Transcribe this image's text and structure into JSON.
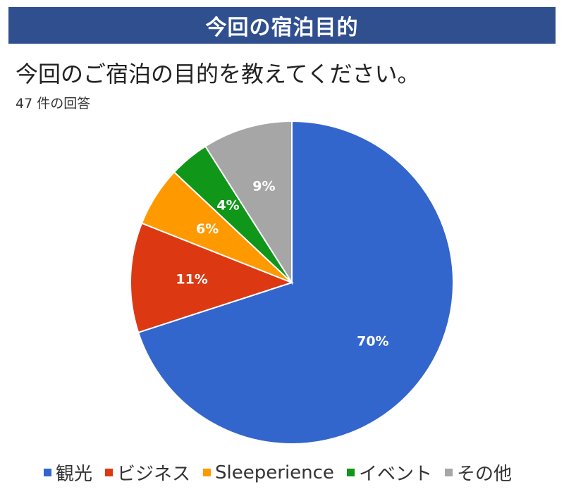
{
  "header": {
    "title": "今回の宿泊目的"
  },
  "survey": {
    "question": "今回のご宿泊の目的を教えてください。",
    "response_count": "47 件の回答"
  },
  "chart_data": {
    "type": "pie",
    "categories": [
      "観光",
      "ビジネス",
      "Sleeperience",
      "イベント",
      "その他"
    ],
    "values": [
      70,
      11,
      6,
      4,
      9
    ],
    "labels": [
      "70%",
      "11%",
      "6%",
      "4%",
      "9%"
    ],
    "colors": [
      "#3366cc",
      "#dc3912",
      "#ff9900",
      "#109618",
      "#a6a6a6"
    ],
    "start_angle": "12 o'clock",
    "direction": "clockwise",
    "legend_position": "bottom"
  }
}
